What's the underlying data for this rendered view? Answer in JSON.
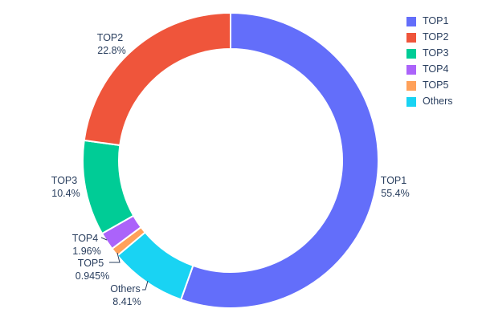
{
  "chart_data": {
    "type": "pie",
    "subtype": "donut",
    "hole": 0.755,
    "title": "",
    "legend_position": "right",
    "order_clockwise_from_top": [
      "TOP1",
      "Others",
      "TOP5",
      "TOP4",
      "TOP3",
      "TOP2"
    ],
    "series": [
      {
        "name": "TOP1",
        "value": 55.4,
        "label": "55.4%",
        "color": "#636EFA"
      },
      {
        "name": "TOP2",
        "value": 22.8,
        "label": "22.8%",
        "color": "#EF553B"
      },
      {
        "name": "TOP3",
        "value": 10.4,
        "label": "10.4%",
        "color": "#00CC96"
      },
      {
        "name": "TOP4",
        "value": 1.96,
        "label": "1.96%",
        "color": "#AB63FA"
      },
      {
        "name": "TOP5",
        "value": 0.945,
        "label": "0.945%",
        "color": "#FFA15A"
      },
      {
        "name": "Others",
        "value": 8.41,
        "label": "8.41%",
        "color": "#19D3F3"
      }
    ],
    "legend_entries": [
      "TOP1",
      "TOP2",
      "TOP3",
      "TOP4",
      "TOP5",
      "Others"
    ],
    "text_color": "#2a3f5f",
    "background_color": "#ffffff"
  }
}
